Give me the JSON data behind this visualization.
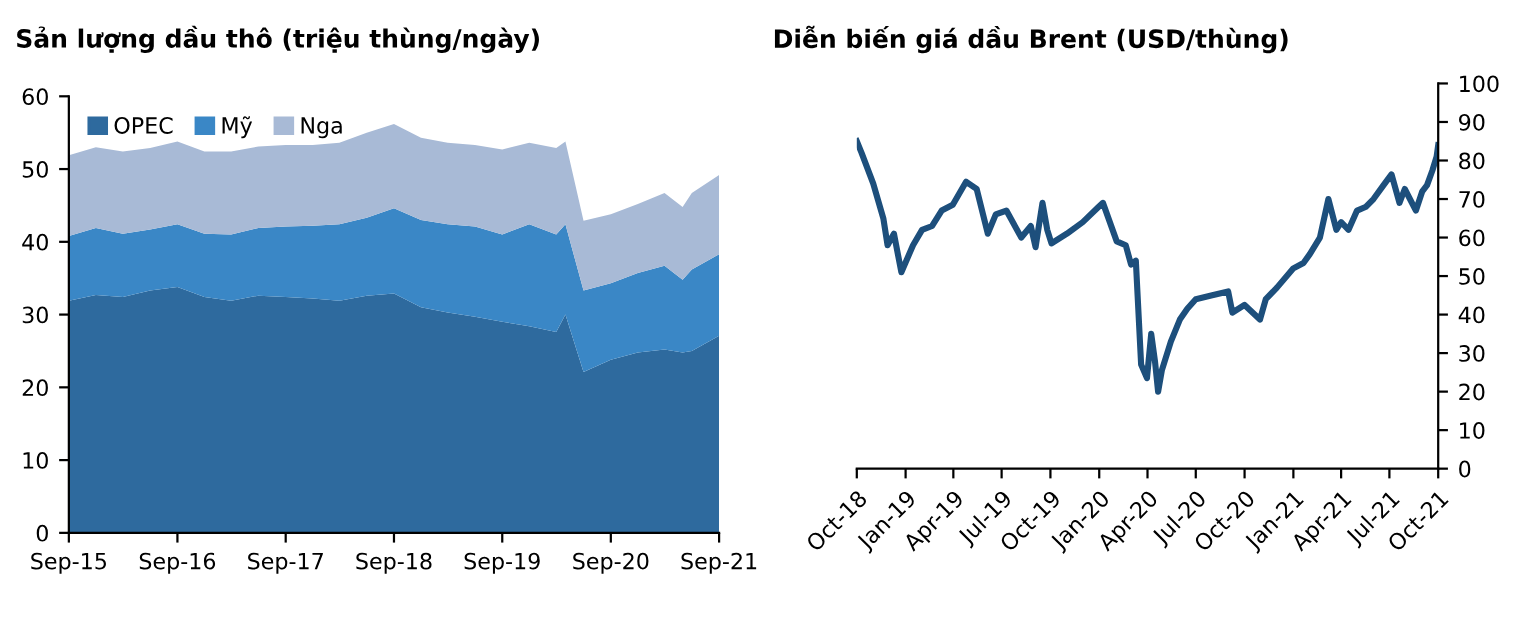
{
  "chart_data": [
    {
      "type": "area",
      "title": "Sản lượng dầu thô (triệu thùng/ngày)",
      "stacked": true,
      "legend": "top left",
      "grid": false,
      "x": [
        "2015-09",
        "2015-12",
        "2016-03",
        "2016-06",
        "2016-09",
        "2016-12",
        "2017-03",
        "2017-06",
        "2017-09",
        "2017-12",
        "2018-03",
        "2018-06",
        "2018-09",
        "2018-12",
        "2019-03",
        "2019-06",
        "2019-09",
        "2019-12",
        "2020-03",
        "2020-04",
        "2020-06",
        "2020-09",
        "2020-12",
        "2021-03",
        "2021-05",
        "2021-06",
        "2021-09"
      ],
      "series": [
        {
          "name": "OPEC",
          "color": "#2e6a9e",
          "values": [
            31.9,
            32.7,
            32.4,
            33.3,
            33.8,
            32.4,
            31.9,
            32.6,
            32.4,
            32.2,
            31.9,
            32.6,
            32.9,
            31.0,
            30.3,
            29.7,
            29.0,
            28.4,
            27.6,
            30.0,
            22.1,
            23.8,
            24.8,
            25.2,
            24.8,
            25.0,
            27.1
          ]
        },
        {
          "name": "Mỹ",
          "color": "#3a87c6",
          "values": [
            8.9,
            9.2,
            8.7,
            8.4,
            8.6,
            8.7,
            9.1,
            9.3,
            9.7,
            10.0,
            10.5,
            10.7,
            11.7,
            12.0,
            12.1,
            12.4,
            12.0,
            14.0,
            13.4,
            12.4,
            11.2,
            10.5,
            10.9,
            11.5,
            10.0,
            11.2,
            11.2
          ]
        },
        {
          "name": "Nga",
          "color": "#a8bad6",
          "values": [
            11.1,
            11.1,
            11.3,
            11.2,
            11.4,
            11.3,
            11.4,
            11.2,
            11.2,
            11.1,
            11.2,
            11.7,
            11.6,
            11.3,
            11.2,
            11.2,
            11.7,
            11.2,
            11.9,
            11.4,
            9.6,
            9.5,
            9.5,
            10.0,
            10.0,
            10.5,
            10.9
          ]
        }
      ],
      "xlim": [
        "2015-09",
        "2021-09"
      ],
      "xticks": [
        {
          "value": "2015-09",
          "label": "Sep-15"
        },
        {
          "value": "2016-09",
          "label": "Sep-16"
        },
        {
          "value": "2017-09",
          "label": "Sep-17"
        },
        {
          "value": "2018-09",
          "label": "Sep-18"
        },
        {
          "value": "2019-09",
          "label": "Sep-19"
        },
        {
          "value": "2020-09",
          "label": "Sep-20"
        },
        {
          "value": "2021-09",
          "label": "Sep-21"
        }
      ],
      "ylim": [
        0,
        60
      ],
      "yticks": [
        0,
        10,
        20,
        30,
        40,
        50,
        60
      ]
    },
    {
      "type": "line",
      "title": "Diễn biến giá dầu Brent (USD/thùng)",
      "grid": false,
      "legend": false,
      "x": [
        "2018-10-01",
        "2018-10-10",
        "2018-11-01",
        "2018-11-20",
        "2018-11-28",
        "2018-12-10",
        "2018-12-24",
        "2019-01-15",
        "2019-02-01",
        "2019-02-20",
        "2019-03-10",
        "2019-03-31",
        "2019-04-25",
        "2019-05-15",
        "2019-06-05",
        "2019-06-20",
        "2019-07-10",
        "2019-08-07",
        "2019-08-25",
        "2019-09-03",
        "2019-09-16",
        "2019-09-25",
        "2019-10-03",
        "2019-11-01",
        "2019-12-01",
        "2019-12-31",
        "2020-01-08",
        "2020-02-03",
        "2020-02-20",
        "2020-03-01",
        "2020-03-10",
        "2020-03-20",
        "2020-03-31",
        "2020-04-08",
        "2020-04-15",
        "2020-04-21",
        "2020-04-28",
        "2020-05-15",
        "2020-06-01",
        "2020-06-15",
        "2020-07-01",
        "2020-08-01",
        "2020-08-31",
        "2020-09-08",
        "2020-10-01",
        "2020-10-30",
        "2020-11-10",
        "2020-12-01",
        "2021-01-01",
        "2021-01-20",
        "2021-02-01",
        "2021-02-20",
        "2021-03-08",
        "2021-03-23",
        "2021-04-01",
        "2021-04-15",
        "2021-05-01",
        "2021-05-18",
        "2021-06-01",
        "2021-06-20",
        "2021-07-05",
        "2021-07-20",
        "2021-07-30",
        "2021-08-20",
        "2021-09-01",
        "2021-09-10",
        "2021-09-20",
        "2021-09-28",
        "2021-10-01"
      ],
      "series": [
        {
          "color": "#1d4f7c",
          "values": [
            85,
            82,
            74,
            65,
            58,
            61,
            51,
            58,
            62,
            63,
            67,
            68.5,
            74.5,
            72.6,
            61,
            66,
            67,
            60,
            63,
            57.5,
            69,
            62,
            58.5,
            61,
            64,
            68,
            69,
            59,
            58,
            53,
            54,
            27,
            23.5,
            35,
            28,
            20,
            25.5,
            33,
            38.7,
            41.5,
            44,
            45,
            46,
            40.5,
            42.5,
            38.7,
            44,
            47,
            52,
            53.4,
            55.7,
            60,
            70,
            62,
            64,
            62,
            67,
            68,
            70,
            73.6,
            76.4,
            69,
            72.6,
            67,
            72,
            73.6,
            77.4,
            81,
            84
          ]
        }
      ],
      "xlim": [
        "2018-10-01",
        "2021-10-01"
      ],
      "xticks": [
        {
          "value": "2018-10-01",
          "label": "Oct-18"
        },
        {
          "value": "2019-01-01",
          "label": "Jan-19"
        },
        {
          "value": "2019-04-01",
          "label": "Apr-19"
        },
        {
          "value": "2019-07-01",
          "label": "Jul-19"
        },
        {
          "value": "2019-10-01",
          "label": "Oct-19"
        },
        {
          "value": "2020-01-01",
          "label": "Jan-20"
        },
        {
          "value": "2020-04-01",
          "label": "Apr-20"
        },
        {
          "value": "2020-07-01",
          "label": "Jul-20"
        },
        {
          "value": "2020-10-01",
          "label": "Oct-20"
        },
        {
          "value": "2021-01-01",
          "label": "Jan-21"
        },
        {
          "value": "2021-04-01",
          "label": "Apr-21"
        },
        {
          "value": "2021-07-01",
          "label": "Jul-21"
        },
        {
          "value": "2021-10-01",
          "label": "Oct-21"
        }
      ],
      "ylim": [
        0,
        100
      ],
      "yticks": [
        0,
        10,
        20,
        30,
        40,
        50,
        60,
        70,
        80,
        90,
        100
      ]
    }
  ]
}
